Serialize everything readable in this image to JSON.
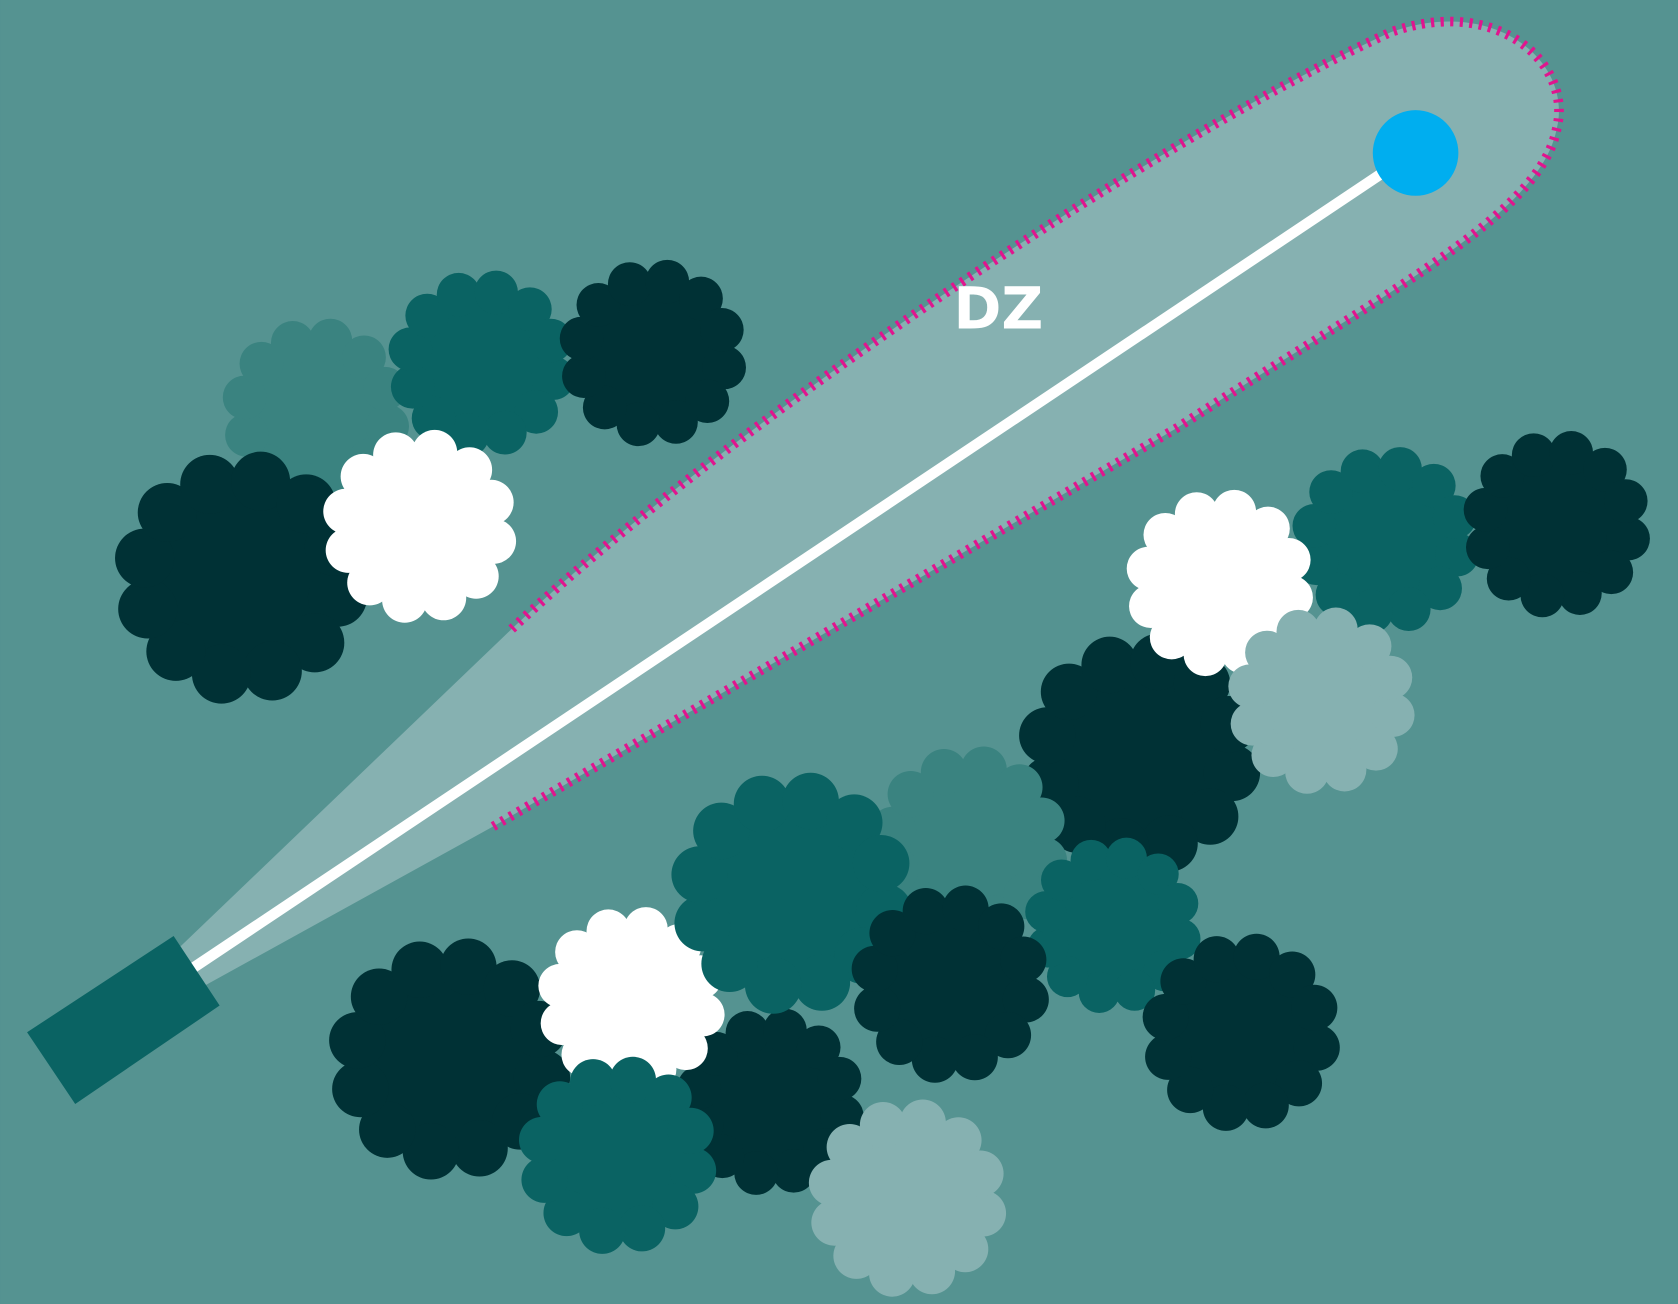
{
  "label": "DZ"
}
